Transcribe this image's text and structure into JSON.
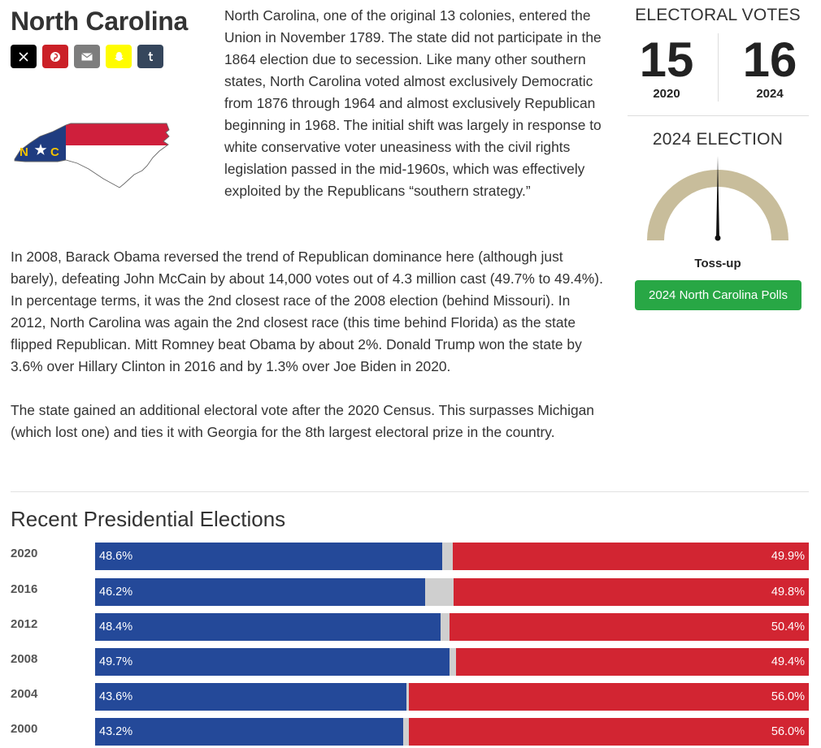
{
  "state": {
    "title": "North Carolina",
    "map_letters": {
      "n": "N",
      "c": "C"
    }
  },
  "share": [
    {
      "name": "x-share-button",
      "icon": "x-icon",
      "color": "#000000"
    },
    {
      "name": "pinterest-share-button",
      "icon": "pinterest-icon",
      "color": "#cb2027"
    },
    {
      "name": "email-share-button",
      "icon": "email-icon",
      "color": "#7d7d7d"
    },
    {
      "name": "snapchat-share-button",
      "icon": "snapchat-icon",
      "color": "#fffc00"
    },
    {
      "name": "tumblr-share-button",
      "icon": "tumblr-icon",
      "color": "#35465c"
    }
  ],
  "intro": "North Carolina, one of the original 13 colonies, entered the Union in November 1789. The state did not participate in the 1864 election due to secession. Like many other southern states, North Carolina voted almost exclusively Democratic from 1876 through 1964 and almost exclusively Republican beginning in 1968. The initial shift was largely in response to white conservative voter uneasiness with the civil rights legislation passed in the mid-1960s, which was effectively exploited by the Republicans “southern strategy.”",
  "para2": "In 2008, Barack Obama reversed the trend of Republican dominance here (although just barely), defeating John McCain by about 14,000 votes out of 4.3 million cast (49.7% to 49.4%). In percentage terms, it was the 2nd closest race of the 2008 election (behind Missouri). In 2012, North Carolina was again the 2nd closest race (this time behind Florida) as the state flipped Republican. Mitt Romney beat Obama by about 2%. Donald Trump won the state by 3.6% over Hillary Clinton in 2016 and by 1.3% over Joe Biden in 2020.",
  "para3": "The state gained an additional electoral vote after the 2020 Census. This surpasses Michigan (which lost one) and ties it with Georgia for the 8th largest electoral prize in the country.",
  "electoral_votes": {
    "title": "ELECTORAL VOTES",
    "y2020": {
      "value": "15",
      "year": "2020"
    },
    "y2024": {
      "value": "16",
      "year": "2024"
    }
  },
  "election_2024": {
    "title": "2024 ELECTION",
    "rating": "Toss-up",
    "needle_position": 0.5,
    "polls_button": "2024 North Carolina Polls"
  },
  "recent": {
    "title": "Recent Presidential Elections",
    "rows": [
      {
        "year": "2020",
        "dem": 48.6,
        "rep": 49.9,
        "dem_label": "48.6%",
        "rep_label": "49.9%"
      },
      {
        "year": "2016",
        "dem": 46.2,
        "rep": 49.8,
        "dem_label": "46.2%",
        "rep_label": "49.8%"
      },
      {
        "year": "2012",
        "dem": 48.4,
        "rep": 50.4,
        "dem_label": "48.4%",
        "rep_label": "50.4%"
      },
      {
        "year": "2008",
        "dem": 49.7,
        "rep": 49.4,
        "dem_label": "49.7%",
        "rep_label": "49.4%"
      },
      {
        "year": "2004",
        "dem": 43.6,
        "rep": 56.0,
        "dem_label": "43.6%",
        "rep_label": "56.0%"
      },
      {
        "year": "2000",
        "dem": 43.2,
        "rep": 56.0,
        "dem_label": "43.2%",
        "rep_label": "56.0%"
      }
    ]
  },
  "colors": {
    "dem": "#244999",
    "rep": "#d22532",
    "other": "#cfcfcf",
    "button": "#28a745",
    "gauge": "#c8bd9b"
  }
}
